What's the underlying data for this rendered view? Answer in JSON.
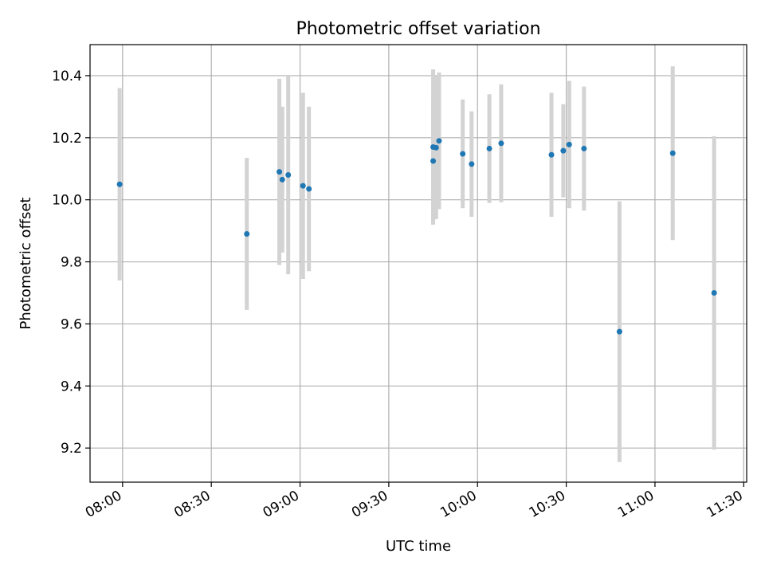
{
  "chart_data": {
    "type": "scatter",
    "title": "Photometric offset variation",
    "xlabel": "UTC time",
    "ylabel": "Photometric offset",
    "x_ticks": [
      "08:00",
      "08:30",
      "09:00",
      "09:30",
      "10:00",
      "10:30",
      "11:00",
      "11:30"
    ],
    "y_ticks": [
      "9.2",
      "9.4",
      "9.6",
      "9.8",
      "10.0",
      "10.2",
      "10.4"
    ],
    "xlim": [
      "07:49",
      "11:31"
    ],
    "ylim": [
      9.09,
      10.5
    ],
    "grid": true,
    "point_color": "#1f77b4",
    "errorbar_color": "#d3d3d3",
    "points": [
      {
        "t": "07:59",
        "y": 10.05,
        "err": 0.31
      },
      {
        "t": "08:42",
        "y": 9.89,
        "err": 0.245
      },
      {
        "t": "08:53",
        "y": 10.09,
        "err": 0.3
      },
      {
        "t": "08:54",
        "y": 10.065,
        "err": 0.235
      },
      {
        "t": "08:56",
        "y": 10.08,
        "err": 0.32
      },
      {
        "t": "09:01",
        "y": 10.045,
        "err": 0.3
      },
      {
        "t": "09:03",
        "y": 10.035,
        "err": 0.265
      },
      {
        "t": "09:45",
        "y": 10.17,
        "err": 0.25
      },
      {
        "t": "09:45",
        "y": 10.125,
        "err": 0.2
      },
      {
        "t": "09:46",
        "y": 10.168,
        "err": 0.23
      },
      {
        "t": "09:47",
        "y": 10.19,
        "err": 0.22
      },
      {
        "t": "09:55",
        "y": 10.148,
        "err": 0.175
      },
      {
        "t": "09:58",
        "y": 10.115,
        "err": 0.17
      },
      {
        "t": "10:04",
        "y": 10.165,
        "err": 0.175
      },
      {
        "t": "10:08",
        "y": 10.182,
        "err": 0.19
      },
      {
        "t": "10:25",
        "y": 10.145,
        "err": 0.2
      },
      {
        "t": "10:29",
        "y": 10.158,
        "err": 0.15
      },
      {
        "t": "10:31",
        "y": 10.178,
        "err": 0.205
      },
      {
        "t": "10:36",
        "y": 10.165,
        "err": 0.2
      },
      {
        "t": "10:48",
        "y": 9.575,
        "err": 0.42
      },
      {
        "t": "11:06",
        "y": 10.15,
        "err": 0.28
      },
      {
        "t": "11:20",
        "y": 9.7,
        "err": 0.505
      }
    ]
  }
}
